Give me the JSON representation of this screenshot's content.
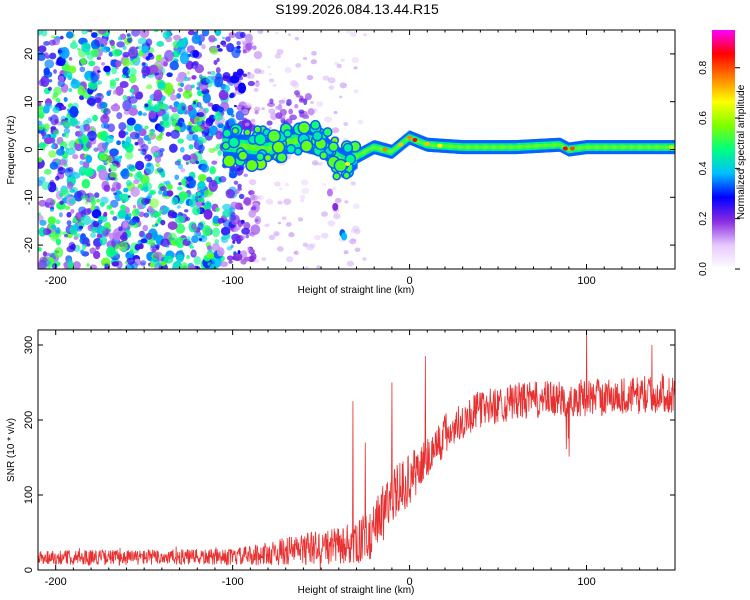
{
  "title": "S199.2026.084.13.44.R15",
  "chart_data": [
    {
      "type": "heatmap",
      "name": "spectrogram",
      "xlabel": "Height of straight line (km)",
      "ylabel": "Frequency (Hz)",
      "xlim": [
        -210,
        150
      ],
      "ylim": [
        -25,
        25
      ],
      "xticks": [
        -200,
        -100,
        0,
        100
      ],
      "yticks": [
        -20,
        -10,
        0,
        10,
        20
      ],
      "xtick_labels": [
        "-200",
        "-100",
        "0",
        "100"
      ],
      "ytick_labels": [
        "-20",
        "-10",
        "0",
        "10",
        "20"
      ],
      "colorbar": {
        "label": "Normalized spectral amplitude",
        "range": [
          0,
          0.95
        ],
        "ticks": [
          0.0,
          0.2,
          0.4,
          0.6,
          0.8
        ],
        "tick_labels": [
          "0.0",
          "0.2",
          "0.4",
          "0.6",
          "0.8"
        ],
        "colormap": [
          "#ffffff",
          "#e6c8ff",
          "#8a2be2",
          "#0000ff",
          "#00bfff",
          "#00ff80",
          "#7fff00",
          "#ffff00",
          "#ff8000",
          "#ff0000",
          "#ff00ff"
        ]
      },
      "features": {
        "noise_region_x": [
          -210,
          -95
        ],
        "noise_amplitude": 0.15,
        "signal_start_x": -105,
        "signal_ridge": [
          {
            "x": -105,
            "y": 1.0
          },
          {
            "x": -90,
            "y": 0.5
          },
          {
            "x": -80,
            "y": 0.0
          },
          {
            "x": -70,
            "y": 1.5
          },
          {
            "x": -60,
            "y": 2.0
          },
          {
            "x": -50,
            "y": 1.0
          },
          {
            "x": -40,
            "y": -2.0
          },
          {
            "x": -35,
            "y": -3.0
          },
          {
            "x": -30,
            "y": -1.5
          },
          {
            "x": -20,
            "y": 0.5
          },
          {
            "x": -10,
            "y": -0.5
          },
          {
            "x": 0,
            "y": 2.5
          },
          {
            "x": 10,
            "y": 1.0
          },
          {
            "x": 30,
            "y": 0.5
          },
          {
            "x": 60,
            "y": 0.5
          },
          {
            "x": 85,
            "y": 1.0
          },
          {
            "x": 90,
            "y": 0.0
          },
          {
            "x": 100,
            "y": 0.5
          },
          {
            "x": 150,
            "y": 0.5
          }
        ],
        "ridge_amplitude": 0.65,
        "ridge_peak_amplitude": 0.9
      }
    },
    {
      "type": "line",
      "name": "snr",
      "xlabel": "Height of straight line (km)",
      "ylabel": "SNR (10 * v/v)",
      "xlim": [
        -210,
        150
      ],
      "ylim": [
        0,
        320
      ],
      "xticks": [
        -200,
        -100,
        0,
        100
      ],
      "yticks": [
        0,
        100,
        200,
        300
      ],
      "xtick_labels": [
        "-200",
        "-100",
        "0",
        "100"
      ],
      "ytick_labels": [
        "0",
        "100",
        "200",
        "300"
      ],
      "color": "#e83030",
      "envelope": [
        {
          "x": -210,
          "base": 17,
          "spread": 10
        },
        {
          "x": -100,
          "base": 17,
          "spread": 11
        },
        {
          "x": -80,
          "base": 22,
          "spread": 16
        },
        {
          "x": -60,
          "base": 28,
          "spread": 22
        },
        {
          "x": -40,
          "base": 32,
          "spread": 25
        },
        {
          "x": -30,
          "base": 33,
          "spread": 28
        },
        {
          "x": -20,
          "base": 60,
          "spread": 35
        },
        {
          "x": -10,
          "base": 100,
          "spread": 35
        },
        {
          "x": 0,
          "base": 120,
          "spread": 35
        },
        {
          "x": 10,
          "base": 150,
          "spread": 30
        },
        {
          "x": 20,
          "base": 180,
          "spread": 30
        },
        {
          "x": 30,
          "base": 200,
          "spread": 25
        },
        {
          "x": 40,
          "base": 215,
          "spread": 25
        },
        {
          "x": 60,
          "base": 225,
          "spread": 25
        },
        {
          "x": 100,
          "base": 230,
          "spread": 25
        },
        {
          "x": 150,
          "base": 235,
          "spread": 25
        }
      ],
      "spikes": [
        {
          "x": -32,
          "y": 225
        },
        {
          "x": -25,
          "y": 170
        },
        {
          "x": -10,
          "y": 250
        },
        {
          "x": 9,
          "y": 285
        },
        {
          "x": 100,
          "y": 320
        },
        {
          "x": 137,
          "y": 300
        }
      ]
    }
  ]
}
